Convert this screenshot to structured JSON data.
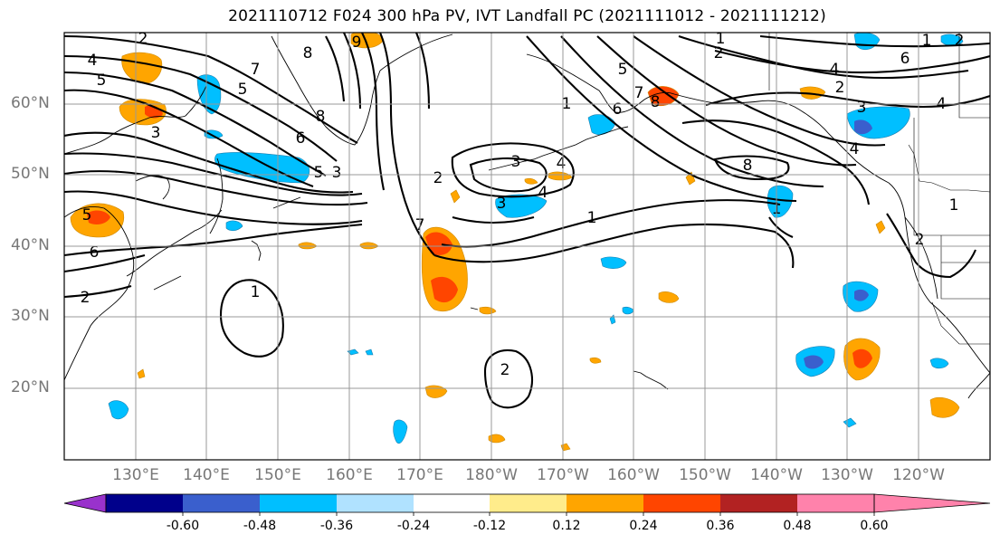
{
  "title": "2021110712 F024 300 hPa PV, IVT Landfall PC (2021111012 - 2021111212)",
  "lat_labels": [
    "60°N",
    "50°N",
    "40°N",
    "30°N",
    "20°N"
  ],
  "lon_labels": [
    "130°E",
    "140°E",
    "150°E",
    "160°E",
    "170°E",
    "180°W",
    "170°W",
    "160°W",
    "150°W",
    "140°W",
    "130°W",
    "120°W"
  ],
  "colorbar": {
    "colors": [
      "#9932cc",
      "#00008b",
      "#3a5fcd",
      "#00bfff",
      "#b0e2ff",
      "#ffffff",
      "#ffec8b",
      "#ffa500",
      "#ff4500",
      "#b22222",
      "#ff82ab"
    ],
    "tick_labels": [
      "-0.60",
      "-0.48",
      "-0.36",
      "-0.24",
      "-0.12",
      "0.12",
      "0.24",
      "0.36",
      "0.48",
      "0.60"
    ]
  },
  "contour_labels": [
    "2",
    "4",
    "5",
    "3",
    "5",
    "6",
    "2",
    "7",
    "5",
    "8",
    "6",
    "8",
    "5",
    "3",
    "9",
    "7",
    "2",
    "1",
    "2",
    "3",
    "4",
    "1",
    "1",
    "8",
    "7",
    "6",
    "5",
    "4",
    "4",
    "3",
    "2",
    "1",
    "8",
    "2",
    "6",
    "4",
    "2",
    "3",
    "4",
    "2",
    "1",
    "1",
    "1"
  ]
}
